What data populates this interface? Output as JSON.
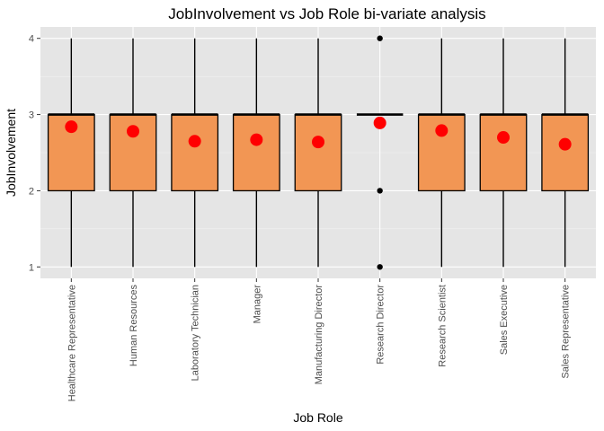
{
  "chart_data": {
    "type": "boxplot",
    "title": "JobInvolvement vs Job Role bi-variate analysis",
    "xlabel": "Job Role",
    "ylabel": "JobInvolvement",
    "ylim": [
      0.85,
      4.15
    ],
    "yticks": [
      1,
      2,
      3,
      4
    ],
    "grid": true,
    "legend": "none",
    "colors": {
      "panel": "#e5e5e5",
      "grid_major": "#ffffff",
      "grid_minor": "#f2f2f2",
      "box_fill": "#f29654",
      "box_stroke": "#000000",
      "mean_point": "#ff0000",
      "outlier": "#000000"
    },
    "categories": [
      "Healthcare Representative",
      "Human Resources",
      "Laboratory Technician",
      "Manager",
      "Manufacturing Director",
      "Research Director",
      "Research Scientist",
      "Sales Executive",
      "Sales Representative"
    ],
    "boxes": [
      {
        "q1": 2,
        "median": 3,
        "q3": 3,
        "whisker_low": 1,
        "whisker_high": 4,
        "mean": 2.84,
        "outliers": []
      },
      {
        "q1": 2,
        "median": 3,
        "q3": 3,
        "whisker_low": 1,
        "whisker_high": 4,
        "mean": 2.78,
        "outliers": []
      },
      {
        "q1": 2,
        "median": 3,
        "q3": 3,
        "whisker_low": 1,
        "whisker_high": 4,
        "mean": 2.65,
        "outliers": []
      },
      {
        "q1": 2,
        "median": 3,
        "q3": 3,
        "whisker_low": 1,
        "whisker_high": 4,
        "mean": 2.67,
        "outliers": []
      },
      {
        "q1": 2,
        "median": 3,
        "q3": 3,
        "whisker_low": 1,
        "whisker_high": 4,
        "mean": 2.64,
        "outliers": []
      },
      {
        "q1": 3,
        "median": 3,
        "q3": 3,
        "whisker_low": 3,
        "whisker_high": 3,
        "mean": 2.89,
        "outliers": [
          1,
          2,
          4
        ]
      },
      {
        "q1": 2,
        "median": 3,
        "q3": 3,
        "whisker_low": 1,
        "whisker_high": 4,
        "mean": 2.79,
        "outliers": []
      },
      {
        "q1": 2,
        "median": 3,
        "q3": 3,
        "whisker_low": 1,
        "whisker_high": 4,
        "mean": 2.7,
        "outliers": []
      },
      {
        "q1": 2,
        "median": 3,
        "q3": 3,
        "whisker_low": 1,
        "whisker_high": 4,
        "mean": 2.61,
        "outliers": []
      }
    ]
  }
}
